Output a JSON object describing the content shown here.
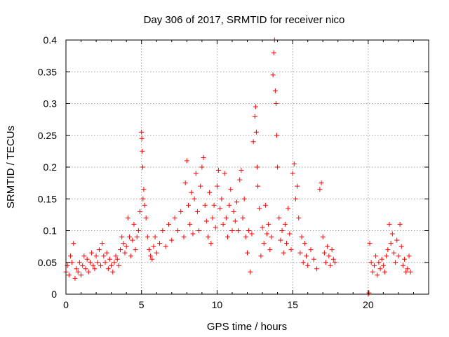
{
  "chart_data": {
    "type": "scatter",
    "title": "Day 306 of 2017, SRMTID for receiver nico",
    "xlabel": "GPS time / hours",
    "ylabel": "SRMTID / TECUs",
    "xlim": [
      0,
      24
    ],
    "ylim": [
      0,
      0.4
    ],
    "xticks": [
      "0",
      "5",
      "10",
      "15",
      "20"
    ],
    "yticks": [
      "0",
      "0.05",
      "0.1",
      "0.15",
      "0.2",
      "0.25",
      "0.3",
      "0.35",
      "0.4"
    ],
    "grid": true,
    "marker": "plus",
    "color": "#ff0000",
    "series": [
      {
        "points": [
          [
            0.0,
            0.035
          ],
          [
            0.1,
            0.045
          ],
          [
            0.2,
            0.03
          ],
          [
            0.3,
            0.06
          ],
          [
            0.4,
            0.05
          ],
          [
            0.5,
            0.08
          ],
          [
            0.6,
            0.025
          ],
          [
            0.7,
            0.04
          ],
          [
            0.8,
            0.035
          ],
          [
            0.9,
            0.05
          ],
          [
            1.0,
            0.03
          ],
          [
            1.1,
            0.045
          ],
          [
            1.2,
            0.06
          ],
          [
            1.3,
            0.04
          ],
          [
            1.4,
            0.055
          ],
          [
            1.5,
            0.035
          ],
          [
            1.6,
            0.05
          ],
          [
            1.7,
            0.065
          ],
          [
            1.8,
            0.045
          ],
          [
            1.9,
            0.04
          ],
          [
            2.0,
            0.06
          ],
          [
            2.1,
            0.05
          ],
          [
            2.2,
            0.07
          ],
          [
            2.3,
            0.045
          ],
          [
            2.4,
            0.08
          ],
          [
            2.5,
            0.06
          ],
          [
            2.6,
            0.05
          ],
          [
            2.7,
            0.065
          ],
          [
            2.8,
            0.04
          ],
          [
            2.9,
            0.055
          ],
          [
            3.0,
            0.045
          ],
          [
            3.1,
            0.035
          ],
          [
            3.2,
            0.05
          ],
          [
            3.3,
            0.06
          ],
          [
            3.4,
            0.055
          ],
          [
            3.5,
            0.045
          ],
          [
            3.6,
            0.07
          ],
          [
            3.7,
            0.09
          ],
          [
            3.8,
            0.08
          ],
          [
            3.9,
            0.065
          ],
          [
            4.0,
            0.075
          ],
          [
            4.1,
            0.12
          ],
          [
            4.2,
            0.09
          ],
          [
            4.3,
            0.06
          ],
          [
            4.4,
            0.085
          ],
          [
            4.5,
            0.11
          ],
          [
            4.6,
            0.07
          ],
          [
            4.7,
            0.09
          ],
          [
            4.8,
            0.1
          ],
          [
            4.9,
            0.13
          ],
          [
            5.0,
            0.255
          ],
          [
            5.02,
            0.245
          ],
          [
            5.05,
            0.225
          ],
          [
            5.08,
            0.2
          ],
          [
            5.1,
            0.15
          ],
          [
            5.15,
            0.165
          ],
          [
            5.2,
            0.14
          ],
          [
            5.3,
            0.12
          ],
          [
            5.4,
            0.09
          ],
          [
            5.5,
            0.07
          ],
          [
            5.6,
            0.06
          ],
          [
            5.7,
            0.055
          ],
          [
            5.8,
            0.075
          ],
          [
            5.9,
            0.09
          ],
          [
            6.0,
            0.065
          ],
          [
            6.2,
            0.08
          ],
          [
            6.4,
            0.1
          ],
          [
            6.6,
            0.075
          ],
          [
            6.8,
            0.11
          ],
          [
            7.0,
            0.085
          ],
          [
            7.2,
            0.12
          ],
          [
            7.4,
            0.1
          ],
          [
            7.6,
            0.13
          ],
          [
            7.8,
            0.09
          ],
          [
            7.9,
            0.175
          ],
          [
            8.0,
            0.21
          ],
          [
            8.1,
            0.14
          ],
          [
            8.2,
            0.11
          ],
          [
            8.3,
            0.16
          ],
          [
            8.4,
            0.095
          ],
          [
            8.5,
            0.15
          ],
          [
            8.6,
            0.19
          ],
          [
            8.7,
            0.13
          ],
          [
            8.8,
            0.1
          ],
          [
            8.9,
            0.17
          ],
          [
            9.0,
            0.2
          ],
          [
            9.1,
            0.215
          ],
          [
            9.2,
            0.14
          ],
          [
            9.3,
            0.115
          ],
          [
            9.4,
            0.09
          ],
          [
            9.5,
            0.16
          ],
          [
            9.6,
            0.08
          ],
          [
            9.7,
            0.12
          ],
          [
            9.8,
            0.14
          ],
          [
            9.9,
            0.105
          ],
          [
            10.0,
            0.17
          ],
          [
            10.1,
            0.195
          ],
          [
            10.2,
            0.135
          ],
          [
            10.3,
            0.15
          ],
          [
            10.4,
            0.11
          ],
          [
            10.5,
            0.19
          ],
          [
            10.6,
            0.12
          ],
          [
            10.7,
            0.09
          ],
          [
            10.8,
            0.14
          ],
          [
            10.9,
            0.165
          ],
          [
            11.0,
            0.1
          ],
          [
            11.1,
            0.13
          ],
          [
            11.2,
            0.115
          ],
          [
            11.3,
            0.145
          ],
          [
            11.4,
            0.1
          ],
          [
            11.5,
            0.18
          ],
          [
            11.6,
            0.195
          ],
          [
            11.7,
            0.12
          ],
          [
            11.8,
            0.15
          ],
          [
            11.9,
            0.09
          ],
          [
            12.0,
            0.065
          ],
          [
            12.1,
            0.1
          ],
          [
            12.2,
            0.035
          ],
          [
            12.3,
            0.095
          ],
          [
            12.4,
            0.24
          ],
          [
            12.5,
            0.28
          ],
          [
            12.55,
            0.295
          ],
          [
            12.6,
            0.255
          ],
          [
            12.65,
            0.2
          ],
          [
            12.7,
            0.17
          ],
          [
            12.8,
            0.135
          ],
          [
            12.9,
            0.06
          ],
          [
            13.0,
            0.105
          ],
          [
            13.1,
            0.08
          ],
          [
            13.2,
            0.14
          ],
          [
            13.3,
            0.095
          ],
          [
            13.4,
            0.11
          ],
          [
            13.5,
            0.07
          ],
          [
            13.6,
            0.09
          ],
          [
            13.7,
            0.345
          ],
          [
            13.75,
            0.38
          ],
          [
            13.8,
            0.4
          ],
          [
            13.85,
            0.32
          ],
          [
            13.9,
            0.3
          ],
          [
            13.95,
            0.25
          ],
          [
            14.0,
            0.2
          ],
          [
            14.1,
            0.12
          ],
          [
            14.2,
            0.085
          ],
          [
            14.3,
            0.1
          ],
          [
            14.4,
            0.065
          ],
          [
            14.5,
            0.11
          ],
          [
            14.6,
            0.08
          ],
          [
            14.7,
            0.135
          ],
          [
            14.8,
            0.095
          ],
          [
            14.9,
            0.07
          ],
          [
            15.0,
            0.19
          ],
          [
            15.1,
            0.205
          ],
          [
            15.2,
            0.15
          ],
          [
            15.3,
            0.17
          ],
          [
            15.4,
            0.12
          ],
          [
            15.5,
            0.065
          ],
          [
            15.6,
            0.09
          ],
          [
            15.7,
            0.05
          ],
          [
            15.8,
            0.08
          ],
          [
            15.9,
            0.06
          ],
          [
            16.0,
            0.045
          ],
          [
            16.2,
            0.07
          ],
          [
            16.4,
            0.055
          ],
          [
            16.6,
            0.04
          ],
          [
            16.8,
            0.165
          ],
          [
            16.9,
            0.175
          ],
          [
            17.0,
            0.09
          ],
          [
            17.1,
            0.065
          ],
          [
            17.2,
            0.05
          ],
          [
            17.3,
            0.075
          ],
          [
            17.4,
            0.06
          ],
          [
            17.5,
            0.045
          ],
          [
            17.6,
            0.07
          ],
          [
            17.7,
            0.055
          ],
          [
            17.8,
            0.05
          ],
          [
            20.0,
            0.0
          ],
          [
            20.05,
            0.002
          ],
          [
            20.1,
            0.08
          ],
          [
            20.2,
            0.05
          ],
          [
            20.3,
            0.035
          ],
          [
            20.4,
            0.045
          ],
          [
            20.5,
            0.06
          ],
          [
            20.6,
            0.03
          ],
          [
            20.7,
            0.05
          ],
          [
            20.8,
            0.04
          ],
          [
            20.9,
            0.055
          ],
          [
            21.0,
            0.045
          ],
          [
            21.1,
            0.035
          ],
          [
            21.2,
            0.06
          ],
          [
            21.3,
            0.07
          ],
          [
            21.4,
            0.11
          ],
          [
            21.5,
            0.08
          ],
          [
            21.6,
            0.095
          ],
          [
            21.7,
            0.065
          ],
          [
            21.8,
            0.05
          ],
          [
            21.9,
            0.085
          ],
          [
            22.0,
            0.06
          ],
          [
            22.1,
            0.11
          ],
          [
            22.2,
            0.075
          ],
          [
            22.3,
            0.045
          ],
          [
            22.4,
            0.055
          ],
          [
            22.5,
            0.035
          ],
          [
            22.6,
            0.04
          ],
          [
            22.7,
            0.06
          ],
          [
            22.8,
            0.035
          ]
        ]
      }
    ]
  }
}
